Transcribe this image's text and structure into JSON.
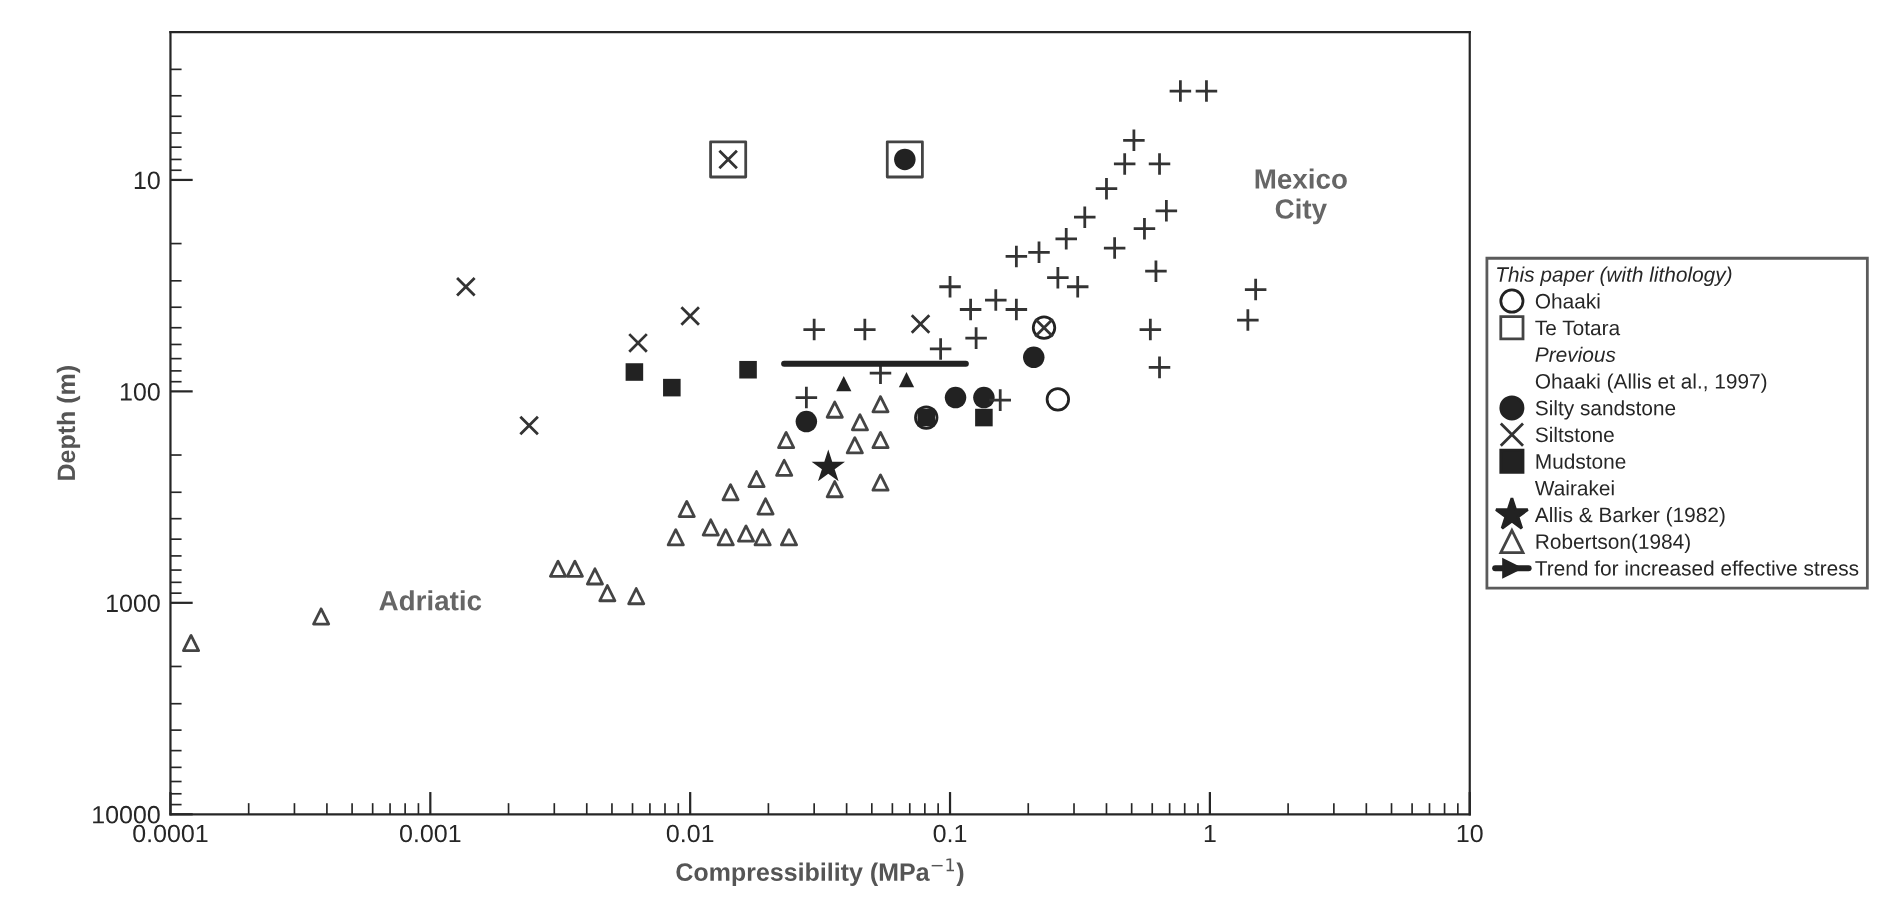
{
  "chart_data": {
    "type": "scatter",
    "xlabel": "Compressibility (MPa$^{−1}$)",
    "ylabel": "Depth (m)",
    "log": "xy",
    "xlim": [
      0.0001,
      10
    ],
    "xticks": [
      {
        "value": 0.0001,
        "label": "0.0001"
      },
      {
        "value": 0.001,
        "label": "0.001"
      },
      {
        "value": 0.01,
        "label": "0.01"
      },
      {
        "value": 0.1,
        "label": "0.1"
      },
      1,
      10
    ],
    "ylim": [
      10000,
      2
    ],
    "yticks": [
      10,
      100,
      1000,
      10000
    ],
    "grid": false,
    "legend": "right",
    "legend_title": "This paper (with lithology)",
    "annotations": [
      "Adriatic",
      "Mexico\nCity",
      "Previous",
      "Ohaaki (Allis et al., 1997)",
      "Wairakei"
    ],
    "series": [
      {
        "name": "Ohaaki",
        "marker": "circle",
        "color": "#222222",
        "x": [
          0.081,
          0.26,
          0.23
        ],
        "values": [
          133,
          109,
          50
        ]
      },
      {
        "name": "Te Totara",
        "marker": "square",
        "color": "#444444",
        "x": [
          0.014,
          0.067
        ],
        "values": [
          8,
          8
        ]
      },
      {
        "name": "Silty sandstone",
        "marker": "circle",
        "color": "#222222",
        "x": [
          0.028,
          0.105,
          0.135,
          0.21,
          0.067
        ],
        "values": [
          139,
          107,
          107,
          69,
          8
        ]
      },
      {
        "name": "Siltstone",
        "marker": "cross",
        "color": "#333333",
        "x": [
          0.00137,
          0.0024,
          0.0063,
          0.01,
          0.077,
          0.014,
          0.23
        ],
        "values": [
          32,
          145,
          59,
          44,
          48,
          8,
          50
        ]
      },
      {
        "name": "Mudstone",
        "marker": "square",
        "color": "#222222",
        "x": [
          0.0061,
          0.0085,
          0.0167,
          0.135,
          0.081
        ],
        "values": [
          81,
          96,
          79,
          133,
          133
        ]
      },
      {
        "name": "Allis & Barker (1982)",
        "marker": "star",
        "color": "#222222",
        "x": [
          0.034
        ],
        "values": [
          228
        ]
      },
      {
        "name": "Robertson(1984)",
        "marker": "triangle",
        "color": "#444444",
        "x": [
          0.00012,
          0.00038,
          0.0031,
          0.0036,
          0.0043,
          0.0048,
          0.0062,
          0.0088,
          0.0097,
          0.012,
          0.0137,
          0.0143,
          0.0164,
          0.018,
          0.019,
          0.0195,
          0.023,
          0.0234,
          0.024,
          0.036,
          0.036,
          0.043,
          0.045,
          0.054,
          0.054,
          0.054
        ],
        "values": [
          1550,
          1160,
          690,
          690,
          750,
          900,
          930,
          490,
          360,
          440,
          490,
          300,
          470,
          260,
          490,
          350,
          230,
          170,
          490,
          122,
          290,
          180,
          140,
          115,
          170,
          270
        ]
      },
      {
        "name": "Trend for increased effective stress",
        "type": "line",
        "marker": "none",
        "color": "#222222",
        "x": [
          0.023,
          0.115
        ],
        "values": [
          74,
          74
        ]
      },
      {
        "marker": "triangle",
        "color": "#222222",
        "x": [
          0.039,
          0.068
        ],
        "values": [
          92,
          88
        ]
      },
      {
        "marker": "plus",
        "color": "#333333",
        "x": [
          0.77,
          0.97,
          0.51,
          0.47,
          0.64,
          0.4,
          0.68,
          0.33,
          0.56,
          0.28,
          0.43,
          0.22,
          0.18,
          0.62,
          0.26,
          0.31,
          0.1,
          0.15,
          0.12,
          0.18,
          1.5,
          1.4,
          0.126,
          0.59,
          0.64,
          0.03,
          0.047,
          0.092,
          0.054,
          0.028,
          0.156
        ],
        "values": [
          3.8,
          3.8,
          6.5,
          8.4,
          8.4,
          11,
          14,
          15,
          17,
          19,
          21,
          22,
          23,
          27,
          29,
          32,
          32,
          37,
          41,
          41,
          33,
          46,
          56,
          51,
          77,
          51,
          51,
          63,
          82,
          107,
          110
        ]
      }
    ]
  }
}
